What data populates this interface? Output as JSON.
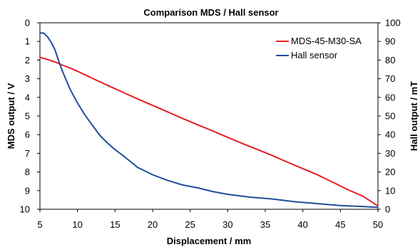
{
  "chart_data": {
    "type": "line",
    "title": "Comparison MDS / Hall sensor",
    "xlabel": "Displacement / mm",
    "ylabel_left": "MDS output / V",
    "ylabel_right": "Hall output / mT",
    "xlim": [
      5,
      50
    ],
    "ylim_left": [
      0,
      10
    ],
    "ylim_left_inverted": true,
    "ylim_right": [
      0,
      100
    ],
    "x_ticks": [
      5,
      10,
      15,
      20,
      25,
      30,
      35,
      40,
      45,
      50
    ],
    "y_left_ticks": [
      0,
      1,
      2,
      3,
      4,
      5,
      6,
      7,
      8,
      9,
      10
    ],
    "y_right_ticks": [
      0,
      10,
      20,
      30,
      40,
      50,
      60,
      70,
      80,
      90,
      100
    ],
    "grid": false,
    "legend_position": "top-right",
    "series": [
      {
        "name": "MDS-45-M30-SA",
        "axis": "left",
        "color": "#e31e24",
        "x": [
          5,
          6,
          7,
          8,
          9,
          10,
          12,
          14,
          16,
          18,
          20,
          22,
          24,
          26,
          28,
          30,
          32,
          34,
          36,
          38,
          40,
          42,
          44,
          46,
          48,
          50
        ],
        "y": [
          1.85,
          1.97,
          2.1,
          2.27,
          2.42,
          2.6,
          2.98,
          3.35,
          3.72,
          4.08,
          4.43,
          4.78,
          5.13,
          5.47,
          5.8,
          6.14,
          6.48,
          6.8,
          7.13,
          7.48,
          7.82,
          8.16,
          8.55,
          8.95,
          9.3,
          9.82
        ]
      },
      {
        "name": "Hall sensor",
        "axis": "right",
        "color": "#1f4e9c",
        "x": [
          5,
          5.5,
          6,
          6.5,
          7,
          7.5,
          8,
          9,
          10,
          11,
          12,
          13,
          14,
          15,
          16,
          18,
          20,
          22,
          24,
          26,
          28,
          30,
          33,
          36,
          39,
          42,
          45,
          48,
          50
        ],
        "y": [
          94.5,
          94.5,
          92.5,
          89.5,
          85.5,
          79.5,
          74,
          64.5,
          57,
          50.5,
          45,
          39.5,
          35.5,
          32,
          29,
          22.5,
          18.5,
          15.5,
          13,
          11.5,
          9.5,
          8,
          6.5,
          5.5,
          4,
          3,
          2,
          1.5,
          1
        ]
      }
    ]
  }
}
